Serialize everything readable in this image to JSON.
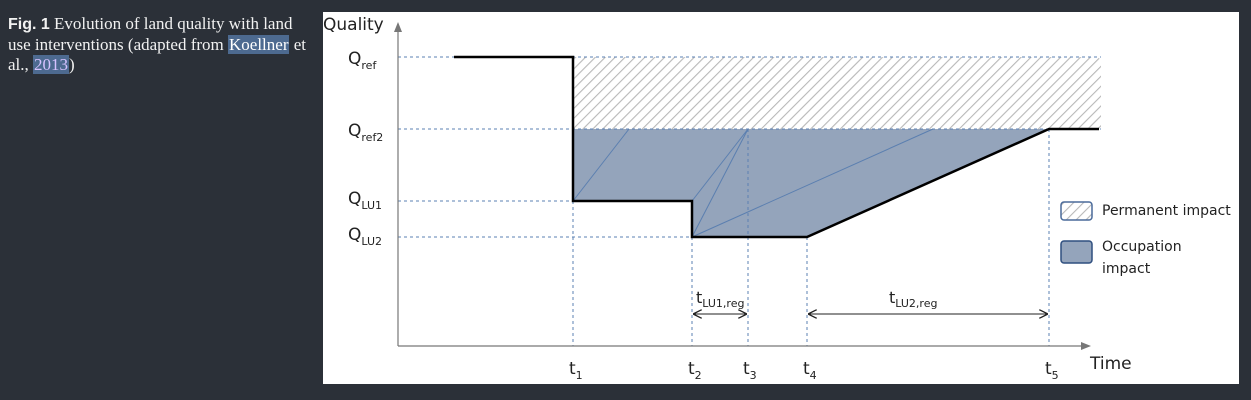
{
  "caption": {
    "fig_label": "Fig. 1",
    "text_before": "Evolution of land quality with land use interventions (adapted from ",
    "link_author": "Koellner",
    "text_middle": " et al., ",
    "link_year": "2013",
    "text_after": ")"
  },
  "figure": {
    "y_axis_label": "Quality",
    "x_axis_label": "Time",
    "y_levels": [
      {
        "main": "Q",
        "sub": "ref"
      },
      {
        "main": "Q",
        "sub": "ref2"
      },
      {
        "main": "Q",
        "sub": "LU1"
      },
      {
        "main": "Q",
        "sub": "LU2"
      }
    ],
    "x_ticks": [
      {
        "main": "t",
        "sub": "1"
      },
      {
        "main": "t",
        "sub": "2"
      },
      {
        "main": "t",
        "sub": "3"
      },
      {
        "main": "t",
        "sub": "4"
      },
      {
        "main": "t",
        "sub": "5"
      }
    ],
    "intervals": [
      {
        "main": "t",
        "sub": "LU1,reg"
      },
      {
        "main": "t",
        "sub": "LU2,reg"
      }
    ],
    "legend": [
      {
        "label": "Permanent impact",
        "style": "hatched"
      },
      {
        "label_line1": "Occupation",
        "label_line2": "impact",
        "style": "filled"
      }
    ],
    "colors": {
      "occupation_fill": "#94a4bb",
      "hatch": "#b8b8b8",
      "guide_line": "#5b80b3",
      "quality_line": "#000000"
    }
  }
}
